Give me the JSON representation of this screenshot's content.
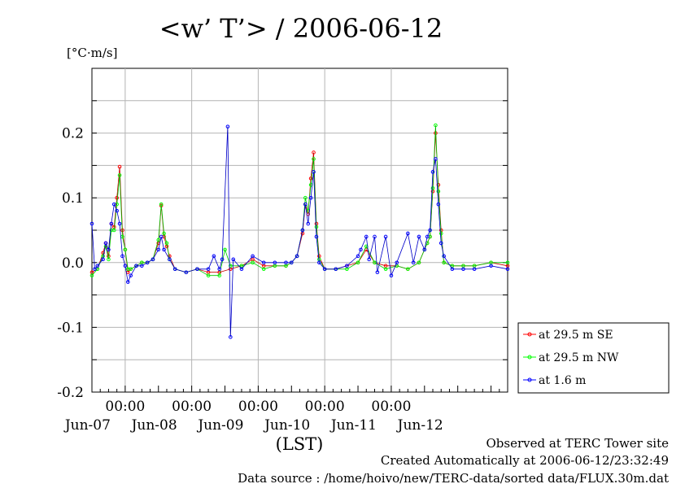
{
  "chart_data": {
    "type": "line",
    "title": "<w’ T’> / 2006-06-12",
    "ylabel": "[°C·m/s]",
    "xlabel": "(LST)",
    "ylim": [
      -0.2,
      0.3
    ],
    "xlim": [
      "2006-06-06T12:00",
      "2006-06-12T18:00"
    ],
    "yticks": [
      "0.2",
      "0.1",
      "0.0",
      "-0.1",
      "-0.2"
    ],
    "ytick_values": [
      0.2,
      0.1,
      0.0,
      -0.1,
      -0.2
    ],
    "xtick_times": [
      "2006-06-07T00:00",
      "2006-06-08T00:00",
      "2006-06-09T00:00",
      "2006-06-10T00:00",
      "2006-06-11T00:00"
    ],
    "xtick_labels": [
      "00:00",
      "00:00",
      "00:00",
      "00:00",
      "00:00"
    ],
    "date_labels": [
      {
        "label": "Jun-07",
        "time": "2006-06-07T00:00"
      },
      {
        "label": "Jun-08",
        "time": "2006-06-08T00:00"
      },
      {
        "label": "Jun-09",
        "time": "2006-06-09T00:00"
      },
      {
        "label": "Jun-10",
        "time": "2006-06-10T00:00"
      },
      {
        "label": "Jun-11",
        "time": "2006-06-11T00:00"
      },
      {
        "label": "Jun-12",
        "time": "2006-06-12T00:00"
      }
    ],
    "grid": true,
    "legend_position": "bottom-right outside",
    "series": [
      {
        "name": "at 29.5 m SE",
        "color": "#ff0000",
        "points": [
          [
            "2006-06-06T12:00",
            -0.015
          ],
          [
            "2006-06-06T14:00",
            -0.01
          ],
          [
            "2006-06-06T16:00",
            0.015
          ],
          [
            "2006-06-06T17:00",
            0.03
          ],
          [
            "2006-06-06T18:00",
            0.01
          ],
          [
            "2006-06-06T19:00",
            0.06
          ],
          [
            "2006-06-06T20:00",
            0.055
          ],
          [
            "2006-06-06T21:00",
            0.1
          ],
          [
            "2006-06-06T22:00",
            0.148
          ],
          [
            "2006-06-06T23:00",
            0.05
          ],
          [
            "2006-06-07T00:00",
            0.02
          ],
          [
            "2006-06-07T01:00",
            -0.015
          ],
          [
            "2006-06-07T02:00",
            -0.01
          ],
          [
            "2006-06-07T04:00",
            -0.005
          ],
          [
            "2006-06-07T06:00",
            0.0
          ],
          [
            "2006-06-07T08:00",
            0.0
          ],
          [
            "2006-06-07T10:00",
            0.005
          ],
          [
            "2006-06-07T12:00",
            0.03
          ],
          [
            "2006-06-07T13:00",
            0.088
          ],
          [
            "2006-06-07T14:00",
            0.04
          ],
          [
            "2006-06-07T15:00",
            0.025
          ],
          [
            "2006-06-07T16:00",
            0.01
          ],
          [
            "2006-06-07T18:00",
            -0.01
          ],
          [
            "2006-06-07T22:00",
            -0.015
          ],
          [
            "2006-06-08T02:00",
            -0.01
          ],
          [
            "2006-06-08T06:00",
            -0.015
          ],
          [
            "2006-06-08T10:00",
            -0.015
          ],
          [
            "2006-06-08T14:00",
            -0.01
          ],
          [
            "2006-06-08T18:00",
            -0.005
          ],
          [
            "2006-06-08T22:00",
            0.005
          ],
          [
            "2006-06-09T02:00",
            -0.005
          ],
          [
            "2006-06-09T06:00",
            -0.005
          ],
          [
            "2006-06-09T10:00",
            -0.005
          ],
          [
            "2006-06-09T12:00",
            0.0
          ],
          [
            "2006-06-09T14:00",
            0.01
          ],
          [
            "2006-06-09T16:00",
            0.045
          ],
          [
            "2006-06-09T17:00",
            0.09
          ],
          [
            "2006-06-09T18:00",
            0.075
          ],
          [
            "2006-06-09T19:00",
            0.13
          ],
          [
            "2006-06-09T20:00",
            0.17
          ],
          [
            "2006-06-09T21:00",
            0.06
          ],
          [
            "2006-06-09T22:00",
            0.01
          ],
          [
            "2006-06-10T00:00",
            -0.01
          ],
          [
            "2006-06-10T04:00",
            -0.01
          ],
          [
            "2006-06-10T08:00",
            -0.005
          ],
          [
            "2006-06-10T12:00",
            0.0
          ],
          [
            "2006-06-10T15:00",
            0.02
          ],
          [
            "2006-06-10T18:00",
            0.0
          ],
          [
            "2006-06-10T22:00",
            -0.005
          ],
          [
            "2006-06-11T02:00",
            -0.005
          ],
          [
            "2006-06-11T06:00",
            -0.01
          ],
          [
            "2006-06-11T10:00",
            0.0
          ],
          [
            "2006-06-11T12:00",
            0.02
          ],
          [
            "2006-06-11T13:00",
            0.03
          ],
          [
            "2006-06-11T14:00",
            0.04
          ],
          [
            "2006-06-11T15:00",
            0.11
          ],
          [
            "2006-06-11T16:00",
            0.2
          ],
          [
            "2006-06-11T17:00",
            0.12
          ],
          [
            "2006-06-11T18:00",
            0.05
          ],
          [
            "2006-06-11T19:00",
            0.0
          ],
          [
            "2006-06-11T22:00",
            -0.005
          ],
          [
            "2006-06-12T02:00",
            -0.005
          ],
          [
            "2006-06-12T06:00",
            -0.005
          ],
          [
            "2006-06-12T12:00",
            0.0
          ],
          [
            "2006-06-12T18:00",
            -0.005
          ]
        ]
      },
      {
        "name": "at 29.5 m NW",
        "color": "#00ff00",
        "points": [
          [
            "2006-06-06T12:00",
            -0.02
          ],
          [
            "2006-06-06T14:00",
            -0.01
          ],
          [
            "2006-06-06T16:00",
            0.01
          ],
          [
            "2006-06-06T17:00",
            0.025
          ],
          [
            "2006-06-06T18:00",
            0.005
          ],
          [
            "2006-06-06T19:00",
            0.05
          ],
          [
            "2006-06-06T20:00",
            0.05
          ],
          [
            "2006-06-06T21:00",
            0.09
          ],
          [
            "2006-06-06T22:00",
            0.135
          ],
          [
            "2006-06-06T23:00",
            0.04
          ],
          [
            "2006-06-07T00:00",
            0.02
          ],
          [
            "2006-06-07T01:00",
            -0.01
          ],
          [
            "2006-06-07T02:00",
            -0.01
          ],
          [
            "2006-06-07T04:00",
            -0.005
          ],
          [
            "2006-06-07T06:00",
            0.0
          ],
          [
            "2006-06-07T08:00",
            0.0
          ],
          [
            "2006-06-07T10:00",
            0.005
          ],
          [
            "2006-06-07T12:00",
            0.035
          ],
          [
            "2006-06-07T13:00",
            0.09
          ],
          [
            "2006-06-07T14:00",
            0.045
          ],
          [
            "2006-06-07T15:00",
            0.03
          ],
          [
            "2006-06-07T16:00",
            0.005
          ],
          [
            "2006-06-07T18:00",
            -0.01
          ],
          [
            "2006-06-07T22:00",
            -0.015
          ],
          [
            "2006-06-08T02:00",
            -0.01
          ],
          [
            "2006-06-08T06:00",
            -0.02
          ],
          [
            "2006-06-08T10:00",
            -0.02
          ],
          [
            "2006-06-08T12:00",
            0.02
          ],
          [
            "2006-06-08T14:00",
            -0.005
          ],
          [
            "2006-06-08T18:00",
            -0.005
          ],
          [
            "2006-06-08T22:00",
            0.0
          ],
          [
            "2006-06-09T02:00",
            -0.01
          ],
          [
            "2006-06-09T06:00",
            -0.005
          ],
          [
            "2006-06-09T10:00",
            -0.005
          ],
          [
            "2006-06-09T12:00",
            0.0
          ],
          [
            "2006-06-09T14:00",
            0.01
          ],
          [
            "2006-06-09T16:00",
            0.05
          ],
          [
            "2006-06-09T17:00",
            0.1
          ],
          [
            "2006-06-09T18:00",
            0.08
          ],
          [
            "2006-06-09T19:00",
            0.12
          ],
          [
            "2006-06-09T20:00",
            0.16
          ],
          [
            "2006-06-09T21:00",
            0.055
          ],
          [
            "2006-06-09T22:00",
            0.005
          ],
          [
            "2006-06-10T00:00",
            -0.01
          ],
          [
            "2006-06-10T04:00",
            -0.01
          ],
          [
            "2006-06-10T08:00",
            -0.01
          ],
          [
            "2006-06-10T12:00",
            0.0
          ],
          [
            "2006-06-10T15:00",
            0.025
          ],
          [
            "2006-06-10T18:00",
            0.0
          ],
          [
            "2006-06-10T22:00",
            -0.01
          ],
          [
            "2006-06-11T02:00",
            -0.005
          ],
          [
            "2006-06-11T06:00",
            -0.01
          ],
          [
            "2006-06-11T10:00",
            0.0
          ],
          [
            "2006-06-11T12:00",
            0.02
          ],
          [
            "2006-06-11T13:00",
            0.03
          ],
          [
            "2006-06-11T14:00",
            0.04
          ],
          [
            "2006-06-11T15:00",
            0.115
          ],
          [
            "2006-06-11T16:00",
            0.212
          ],
          [
            "2006-06-11T17:00",
            0.11
          ],
          [
            "2006-06-11T18:00",
            0.045
          ],
          [
            "2006-06-11T19:00",
            0.0
          ],
          [
            "2006-06-11T22:00",
            -0.005
          ],
          [
            "2006-06-12T02:00",
            -0.005
          ],
          [
            "2006-06-12T06:00",
            -0.005
          ],
          [
            "2006-06-12T12:00",
            0.0
          ],
          [
            "2006-06-12T18:00",
            0.0
          ]
        ]
      },
      {
        "name": "at 1.6 m",
        "color": "#0000ff",
        "points": [
          [
            "2006-06-06T12:00",
            0.06
          ],
          [
            "2006-06-06T13:00",
            -0.01
          ],
          [
            "2006-06-06T14:00",
            -0.005
          ],
          [
            "2006-06-06T16:00",
            0.005
          ],
          [
            "2006-06-06T17:00",
            0.03
          ],
          [
            "2006-06-06T18:00",
            0.02
          ],
          [
            "2006-06-06T19:00",
            0.06
          ],
          [
            "2006-06-06T20:00",
            0.09
          ],
          [
            "2006-06-06T21:00",
            0.08
          ],
          [
            "2006-06-06T22:00",
            0.06
          ],
          [
            "2006-06-06T23:00",
            0.01
          ],
          [
            "2006-06-07T00:00",
            -0.005
          ],
          [
            "2006-06-07T01:00",
            -0.03
          ],
          [
            "2006-06-07T02:00",
            -0.02
          ],
          [
            "2006-06-07T04:00",
            -0.005
          ],
          [
            "2006-06-07T06:00",
            -0.005
          ],
          [
            "2006-06-07T08:00",
            0.0
          ],
          [
            "2006-06-07T10:00",
            0.005
          ],
          [
            "2006-06-07T12:00",
            0.02
          ],
          [
            "2006-06-07T13:00",
            0.04
          ],
          [
            "2006-06-07T14:00",
            0.02
          ],
          [
            "2006-06-07T16:00",
            0.005
          ],
          [
            "2006-06-07T18:00",
            -0.01
          ],
          [
            "2006-06-07T22:00",
            -0.015
          ],
          [
            "2006-06-08T02:00",
            -0.01
          ],
          [
            "2006-06-08T06:00",
            -0.01
          ],
          [
            "2006-06-08T08:00",
            0.01
          ],
          [
            "2006-06-08T10:00",
            -0.01
          ],
          [
            "2006-06-08T11:00",
            0.005
          ],
          [
            "2006-06-08T13:00",
            0.21
          ],
          [
            "2006-06-08T14:00",
            -0.115
          ],
          [
            "2006-06-08T15:00",
            0.005
          ],
          [
            "2006-06-08T18:00",
            -0.01
          ],
          [
            "2006-06-08T22:00",
            0.01
          ],
          [
            "2006-06-09T02:00",
            0.0
          ],
          [
            "2006-06-09T06:00",
            0.0
          ],
          [
            "2006-06-09T10:00",
            0.0
          ],
          [
            "2006-06-09T12:00",
            0.0
          ],
          [
            "2006-06-09T14:00",
            0.01
          ],
          [
            "2006-06-09T16:00",
            0.05
          ],
          [
            "2006-06-09T17:00",
            0.09
          ],
          [
            "2006-06-09T18:00",
            0.06
          ],
          [
            "2006-06-09T19:00",
            0.1
          ],
          [
            "2006-06-09T20:00",
            0.14
          ],
          [
            "2006-06-09T21:00",
            0.04
          ],
          [
            "2006-06-09T22:00",
            0.0
          ],
          [
            "2006-06-10T00:00",
            -0.01
          ],
          [
            "2006-06-10T04:00",
            -0.01
          ],
          [
            "2006-06-10T08:00",
            -0.005
          ],
          [
            "2006-06-10T12:00",
            0.01
          ],
          [
            "2006-06-10T13:00",
            0.02
          ],
          [
            "2006-06-10T15:00",
            0.04
          ],
          [
            "2006-06-10T16:00",
            0.005
          ],
          [
            "2006-06-10T18:00",
            0.04
          ],
          [
            "2006-06-10T19:00",
            -0.015
          ],
          [
            "2006-06-10T22:00",
            0.04
          ],
          [
            "2006-06-11T00:00",
            -0.02
          ],
          [
            "2006-06-11T02:00",
            0.0
          ],
          [
            "2006-06-11T06:00",
            0.045
          ],
          [
            "2006-06-11T08:00",
            0.0
          ],
          [
            "2006-06-11T10:00",
            0.04
          ],
          [
            "2006-06-11T12:00",
            0.02
          ],
          [
            "2006-06-11T13:00",
            0.04
          ],
          [
            "2006-06-11T14:00",
            0.05
          ],
          [
            "2006-06-11T15:00",
            0.14
          ],
          [
            "2006-06-11T16:00",
            0.16
          ],
          [
            "2006-06-11T17:00",
            0.09
          ],
          [
            "2006-06-11T18:00",
            0.03
          ],
          [
            "2006-06-11T19:00",
            0.01
          ],
          [
            "2006-06-11T22:00",
            -0.01
          ],
          [
            "2006-06-12T02:00",
            -0.01
          ],
          [
            "2006-06-12T06:00",
            -0.01
          ],
          [
            "2006-06-12T12:00",
            -0.005
          ],
          [
            "2006-06-12T18:00",
            -0.01
          ]
        ]
      }
    ]
  },
  "footer": {
    "line1": "Observed at TERC Tower site",
    "line2": "Created Automatically at 2006-06-12/23:32:49",
    "line3": "Data source : /home/hoivo/new/TERC-data/sorted  data/FLUX.30m.dat"
  }
}
